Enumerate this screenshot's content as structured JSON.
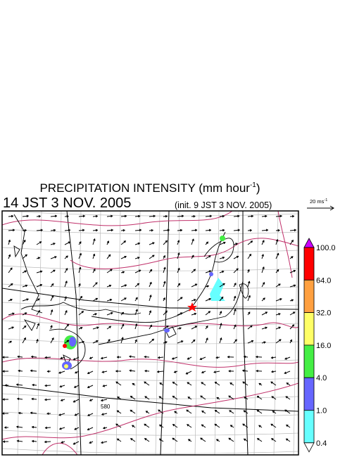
{
  "header": {
    "title": {
      "main": "PRECIPITATION INTENSITY (mm hour",
      "exponent": "-1",
      "end": ")"
    },
    "valid_time": "14 JST 3 NOV. 2005",
    "init_time": "(init. 9 JST 3 NOV. 2005)"
  },
  "wind_scale": {
    "label": "20 ms",
    "exponent": "-1"
  },
  "map": {
    "contour_label": "580"
  },
  "colorbar": {
    "labels": [
      "100.0",
      "64.0",
      "32.0",
      "16.0",
      "4.0",
      "1.0",
      "0.4"
    ],
    "colors": [
      "#cc00ff",
      "#ff0000",
      "#ffa040",
      "#ffff66",
      "#44ee44",
      "#6666ff",
      "#66ffff",
      "#ffffff"
    ]
  }
}
